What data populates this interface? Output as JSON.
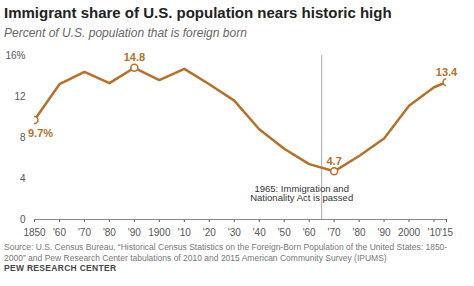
{
  "chart_data": {
    "type": "line",
    "title": "Immigrant share of U.S. population nears historic high",
    "subtitle": "Percent of U.S. population that is foreign born",
    "source": "Source: U.S. Census Bureau, “Historical Census Statistics on the Foreign-Born Population of the United States: 1850-2000” and Pew Research Center tabulations of 2010 and 2015 American Community Survey (IPUMS)",
    "credit": "PEW RESEARCH CENTER",
    "x": [
      1850,
      1860,
      1870,
      1880,
      1890,
      1900,
      1910,
      1920,
      1930,
      1940,
      1950,
      1960,
      1970,
      1980,
      1990,
      2000,
      2010,
      2015
    ],
    "values": [
      9.7,
      13.2,
      14.4,
      13.3,
      14.8,
      13.6,
      14.7,
      13.2,
      11.6,
      8.8,
      6.9,
      5.4,
      4.7,
      6.2,
      7.9,
      11.1,
      12.9,
      13.4
    ],
    "color": "#b5702b",
    "xlim": [
      1850,
      2015
    ],
    "xticks": [
      {
        "value": 1850,
        "label": "1850"
      },
      {
        "value": 1860,
        "label": "'60"
      },
      {
        "value": 1870,
        "label": "'70"
      },
      {
        "value": 1880,
        "label": "'80"
      },
      {
        "value": 1890,
        "label": "'90"
      },
      {
        "value": 1900,
        "label": "1900"
      },
      {
        "value": 1910,
        "label": "'10"
      },
      {
        "value": 1920,
        "label": "'20"
      },
      {
        "value": 1930,
        "label": "'30"
      },
      {
        "value": 1940,
        "label": "'40"
      },
      {
        "value": 1950,
        "label": "'50"
      },
      {
        "value": 1960,
        "label": "'60"
      },
      {
        "value": 1970,
        "label": "'70"
      },
      {
        "value": 1980,
        "label": "'80"
      },
      {
        "value": 1990,
        "label": "'90"
      },
      {
        "value": 2000,
        "label": "2000"
      },
      {
        "value": 2010,
        "label": "'10"
      },
      {
        "value": 2015,
        "label": "'15"
      }
    ],
    "ylim": [
      0,
      16
    ],
    "yticks": [
      0,
      4,
      8,
      12,
      {
        "value": 16,
        "label": "16%"
      }
    ],
    "grid": false,
    "annotations": [
      {
        "x": 1850,
        "y": 9.7,
        "label": "9.7%"
      },
      {
        "x": 1890,
        "y": 14.8,
        "label": "14.8"
      },
      {
        "x": 1970,
        "y": 4.7,
        "label": "4.7"
      },
      {
        "x": 2015,
        "y": 13.4,
        "label": "13.4"
      }
    ],
    "reference_line": {
      "x": 1965,
      "label": "1965: Immigration and Nationality Act is passed"
    }
  }
}
